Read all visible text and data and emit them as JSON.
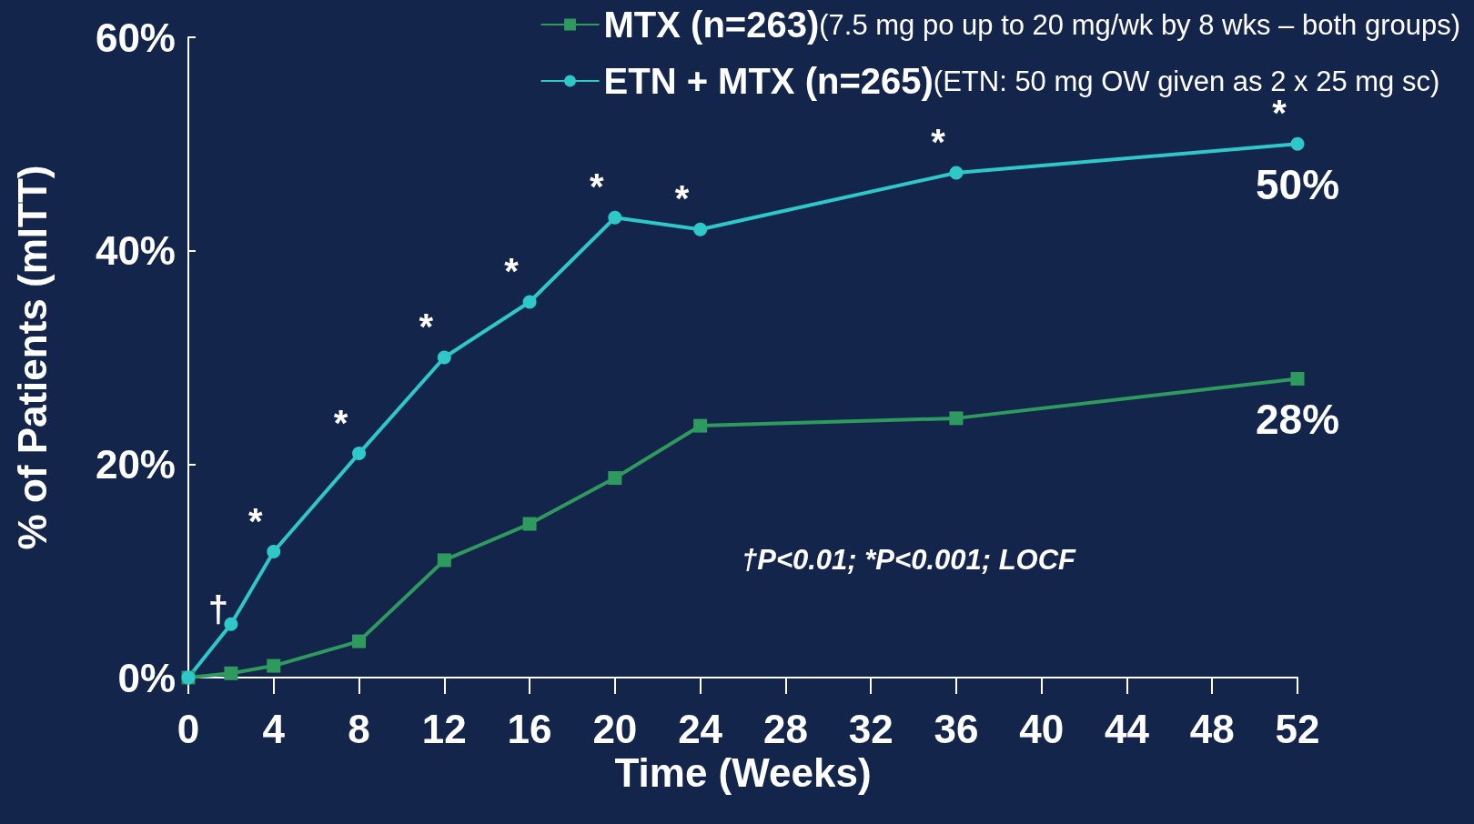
{
  "chart_data": {
    "type": "line",
    "xlabel": "Time (Weeks)",
    "ylabel": "% of Patients (mITT)",
    "x": [
      0,
      2,
      4,
      8,
      12,
      16,
      20,
      24,
      36,
      52
    ],
    "series": [
      {
        "name": "MTX (n=263)(7.5 mg po up to 20 mg/wk by 8 wks – both groups)",
        "color": "#2e9a5e",
        "marker": "square",
        "values": [
          0,
          0.4,
          1.1,
          3.4,
          11,
          14.4,
          18.7,
          23.6,
          24.3,
          28
        ],
        "value_labels": [
          null,
          null,
          null,
          null,
          null,
          null,
          null,
          null,
          null,
          "28%"
        ]
      },
      {
        "name": "ETN + MTX (n=265)(ETN: 50 mg OW given as 2 x 25 mg sc)",
        "color": "#2ec8c8",
        "marker": "circle",
        "values": [
          0,
          5,
          11.8,
          21,
          30,
          35.2,
          43.1,
          42,
          47.3,
          50
        ],
        "value_labels": [
          null,
          null,
          null,
          null,
          null,
          null,
          null,
          null,
          null,
          "50%"
        ]
      }
    ],
    "xlim": [
      0,
      52
    ],
    "xticks": [
      0,
      4,
      8,
      12,
      16,
      20,
      24,
      28,
      32,
      36,
      40,
      44,
      48,
      52
    ],
    "ylim": [
      0,
      60
    ],
    "yticks": [
      {
        "value": 0,
        "label": "0%"
      },
      {
        "value": 20,
        "label": "20%"
      },
      {
        "value": 40,
        "label": "40%"
      },
      {
        "value": 60,
        "label": "60%"
      }
    ],
    "grid": false,
    "legend": "top right",
    "annotations": [
      {
        "text": "†",
        "x": 2,
        "y": 5
      },
      {
        "text": "*",
        "x": 4,
        "y": 11.8
      },
      {
        "text": "*",
        "x": 8,
        "y": 21
      },
      {
        "text": "*",
        "x": 12,
        "y": 30
      },
      {
        "text": "*",
        "x": 16,
        "y": 35.2
      },
      {
        "text": "*",
        "x": 20,
        "y": 43.1
      },
      {
        "text": "*",
        "x": 24,
        "y": 42
      },
      {
        "text": "*",
        "x": 36,
        "y": 47.3
      },
      {
        "text": "*",
        "x": 52,
        "y": 50
      },
      "†P<0.01; *P<0.001; LOCF"
    ]
  }
}
